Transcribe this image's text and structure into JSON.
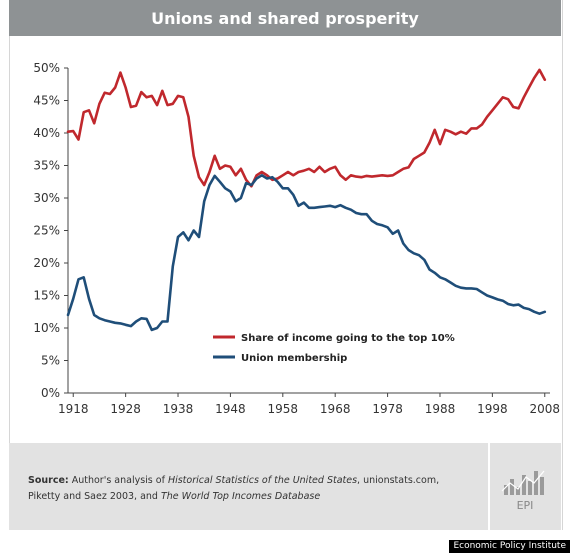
{
  "title": "Unions and shared prosperity",
  "source": {
    "label": "Source:",
    "text_1": " Author's analysis of ",
    "italic_1": "Historical Statistics of the United States",
    "text_2": ", unionstats.com, Piketty and Saez 2003, and ",
    "italic_2": "The World Top Incomes Database"
  },
  "logo_text": "EPI",
  "credit": "Economic Policy Institute",
  "colors": {
    "income": "#c0282d",
    "union": "#1f4e79",
    "axis": "#333333",
    "footer": "#e2e2e2"
  },
  "chart_data": {
    "type": "line",
    "title": "Unions and shared prosperity",
    "xlim": [
      1917,
      2009
    ],
    "ylim": [
      0,
      50
    ],
    "x_ticks": [
      1918,
      1928,
      1938,
      1948,
      1958,
      1968,
      1978,
      1988,
      1998,
      2008
    ],
    "y_ticks": [
      0,
      5,
      10,
      15,
      20,
      25,
      30,
      35,
      40,
      45,
      50
    ],
    "y_tick_labels": [
      "0%",
      "5%",
      "10%",
      "15%",
      "20%",
      "25%",
      "30%",
      "35%",
      "40%",
      "45%",
      "50%"
    ],
    "grid": false,
    "legend_position": "center-right",
    "series": [
      {
        "name": "Share of income going to the top 10%",
        "color": "#c0282d",
        "x": [
          1917,
          1918,
          1919,
          1920,
          1921,
          1922,
          1923,
          1924,
          1925,
          1926,
          1927,
          1928,
          1929,
          1930,
          1931,
          1932,
          1933,
          1934,
          1935,
          1936,
          1937,
          1938,
          1939,
          1940,
          1941,
          1942,
          1943,
          1944,
          1945,
          1946,
          1947,
          1948,
          1949,
          1950,
          1951,
          1952,
          1953,
          1954,
          1955,
          1956,
          1957,
          1958,
          1959,
          1960,
          1961,
          1962,
          1963,
          1964,
          1965,
          1966,
          1967,
          1968,
          1969,
          1970,
          1971,
          1972,
          1973,
          1974,
          1975,
          1976,
          1977,
          1978,
          1979,
          1980,
          1981,
          1982,
          1983,
          1984,
          1985,
          1986,
          1987,
          1988,
          1989,
          1990,
          1991,
          1992,
          1993,
          1994,
          1995,
          1996,
          1997,
          1998,
          1999,
          2000,
          2001,
          2002,
          2003,
          2004,
          2005,
          2006,
          2007,
          2008
        ],
        "values": [
          40.2,
          40.3,
          39.0,
          43.2,
          43.5,
          41.5,
          44.5,
          46.2,
          46.0,
          47.0,
          49.3,
          47.0,
          44.0,
          44.2,
          46.3,
          45.5,
          45.7,
          44.3,
          46.5,
          44.3,
          44.5,
          45.7,
          45.5,
          42.5,
          36.5,
          33.2,
          32.0,
          34.0,
          36.5,
          34.5,
          35.0,
          34.8,
          33.5,
          34.5,
          32.8,
          31.8,
          33.5,
          34.0,
          33.5,
          32.8,
          33.0,
          33.5,
          34.0,
          33.5,
          34.0,
          34.2,
          34.5,
          34.0,
          34.8,
          34.0,
          34.5,
          34.8,
          33.5,
          32.8,
          33.5,
          33.3,
          33.2,
          33.4,
          33.3,
          33.4,
          33.5,
          33.4,
          33.5,
          34.0,
          34.5,
          34.7,
          36.0,
          36.5,
          37.0,
          38.5,
          40.5,
          38.3,
          40.5,
          40.2,
          39.8,
          40.2,
          39.9,
          40.7,
          40.7,
          41.3,
          42.5,
          43.5,
          44.5,
          45.5,
          45.2,
          44.0,
          43.8,
          45.5,
          47.0,
          48.5,
          49.7,
          48.2
        ]
      },
      {
        "name": "Union membership",
        "color": "#1f4e79",
        "x": [
          1917,
          1918,
          1919,
          1920,
          1921,
          1922,
          1923,
          1924,
          1925,
          1926,
          1927,
          1928,
          1929,
          1930,
          1931,
          1932,
          1933,
          1934,
          1935,
          1936,
          1937,
          1938,
          1939,
          1940,
          1941,
          1942,
          1943,
          1944,
          1945,
          1946,
          1947,
          1948,
          1949,
          1950,
          1951,
          1952,
          1953,
          1954,
          1955,
          1956,
          1957,
          1958,
          1959,
          1960,
          1961,
          1962,
          1963,
          1964,
          1965,
          1966,
          1967,
          1968,
          1969,
          1970,
          1971,
          1972,
          1973,
          1974,
          1975,
          1976,
          1977,
          1978,
          1979,
          1980,
          1981,
          1982,
          1983,
          1984,
          1985,
          1986,
          1987,
          1988,
          1989,
          1990,
          1991,
          1992,
          1993,
          1994,
          1995,
          1996,
          1997,
          1998,
          1999,
          2000,
          2001,
          2002,
          2003,
          2004,
          2005,
          2006,
          2007,
          2008
        ],
        "values": [
          12.0,
          14.5,
          17.5,
          17.8,
          14.5,
          12.0,
          11.5,
          11.2,
          11.0,
          10.8,
          10.7,
          10.5,
          10.3,
          11.0,
          11.5,
          11.4,
          9.7,
          10.0,
          11.0,
          11.0,
          19.5,
          24.0,
          24.7,
          23.5,
          25.0,
          24.0,
          29.5,
          32.0,
          33.4,
          32.5,
          31.5,
          31.0,
          29.5,
          30.0,
          32.3,
          32.0,
          33.0,
          33.5,
          33.0,
          33.2,
          32.5,
          31.5,
          31.5,
          30.5,
          28.8,
          29.3,
          28.5,
          28.5,
          28.6,
          28.7,
          28.8,
          28.6,
          28.9,
          28.5,
          28.2,
          27.7,
          27.5,
          27.5,
          26.5,
          26.0,
          25.8,
          25.5,
          24.5,
          25.0,
          23.0,
          22.0,
          21.5,
          21.2,
          20.5,
          19.0,
          18.5,
          17.8,
          17.5,
          17.0,
          16.5,
          16.2,
          16.1,
          16.1,
          16.0,
          15.5,
          15.0,
          14.7,
          14.4,
          14.2,
          13.7,
          13.5,
          13.6,
          13.1,
          12.9,
          12.5,
          12.2,
          12.5
        ]
      }
    ]
  }
}
